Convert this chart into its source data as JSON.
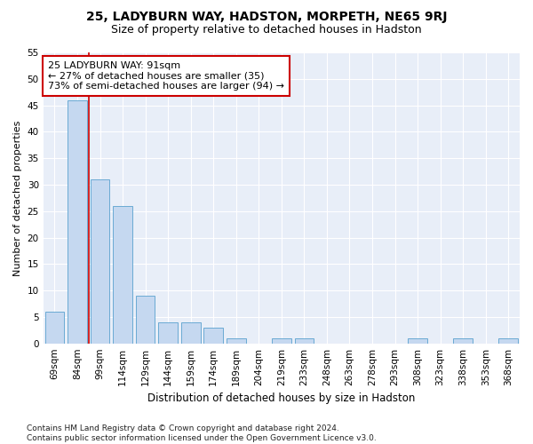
{
  "title": "25, LADYBURN WAY, HADSTON, MORPETH, NE65 9RJ",
  "subtitle": "Size of property relative to detached houses in Hadston",
  "xlabel": "Distribution of detached houses by size in Hadston",
  "ylabel": "Number of detached properties",
  "categories": [
    "69sqm",
    "84sqm",
    "99sqm",
    "114sqm",
    "129sqm",
    "144sqm",
    "159sqm",
    "174sqm",
    "189sqm",
    "204sqm",
    "219sqm",
    "233sqm",
    "248sqm",
    "263sqm",
    "278sqm",
    "293sqm",
    "308sqm",
    "323sqm",
    "338sqm",
    "353sqm",
    "368sqm"
  ],
  "values": [
    6,
    46,
    31,
    26,
    9,
    4,
    4,
    3,
    1,
    0,
    1,
    1,
    0,
    0,
    0,
    0,
    1,
    0,
    1,
    0,
    1
  ],
  "bar_color": "#c5d8f0",
  "bar_edge_color": "#6aaad4",
  "annotation_box_text": "25 LADYBURN WAY: 91sqm\n← 27% of detached houses are smaller (35)\n73% of semi-detached houses are larger (94) →",
  "annotation_box_color": "white",
  "annotation_box_edge_color": "#cc0000",
  "vline_color": "#cc0000",
  "vline_x": 1.5,
  "ylim": [
    0,
    55
  ],
  "yticks": [
    0,
    5,
    10,
    15,
    20,
    25,
    30,
    35,
    40,
    45,
    50,
    55
  ],
  "background_color": "#e8eef8",
  "grid_color": "white",
  "footer_text": "Contains HM Land Registry data © Crown copyright and database right 2024.\nContains public sector information licensed under the Open Government Licence v3.0.",
  "title_fontsize": 10,
  "subtitle_fontsize": 9,
  "xlabel_fontsize": 8.5,
  "ylabel_fontsize": 8,
  "tick_fontsize": 7.5,
  "annotation_fontsize": 8,
  "footer_fontsize": 6.5
}
